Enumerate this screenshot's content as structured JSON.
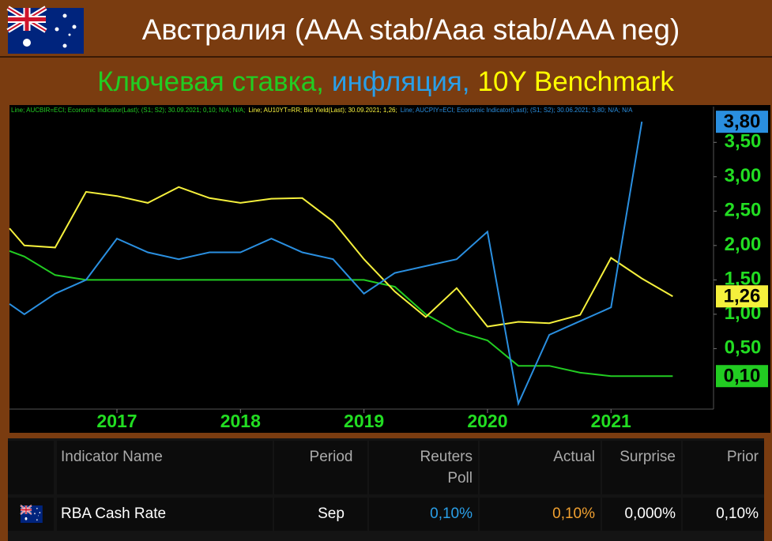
{
  "header": {
    "title": "Австралия (AAA stab/Aaa stab/AAA neg)",
    "subtitle_parts": [
      {
        "text": "Ключевая ставка,",
        "color": "#22cc22"
      },
      {
        "text": "инфляция,",
        "color": "#2a9fe8"
      },
      {
        "text": "10Y Benchmark",
        "color": "#ffff00"
      }
    ]
  },
  "chart_data": {
    "type": "line",
    "x": [
      2016.13,
      2016.25,
      2016.5,
      2016.75,
      2017.0,
      2017.25,
      2017.5,
      2017.75,
      2018.0,
      2018.25,
      2018.5,
      2018.75,
      2019.0,
      2019.25,
      2019.5,
      2019.75,
      2020.0,
      2020.25,
      2020.5,
      2020.75,
      2021.0,
      2021.25,
      2021.5
    ],
    "xlim": [
      2016.13,
      2021.83
    ],
    "xticks": [
      2017,
      2018,
      2019,
      2020,
      2021
    ],
    "ylim": [
      -0.38,
      4.02
    ],
    "yticks": [
      {
        "value": 0.5,
        "label": "0,50"
      },
      {
        "value": 1.0,
        "label": "1,00"
      },
      {
        "value": 1.5,
        "label": "1,50"
      },
      {
        "value": 2.0,
        "label": "2,00"
      },
      {
        "value": 2.5,
        "label": "2,50"
      },
      {
        "value": 3.0,
        "label": "3,00"
      },
      {
        "value": 3.5,
        "label": "3,50"
      }
    ],
    "grid": false,
    "series": [
      {
        "name": "Line; AUCBIR=ECI; Economic Indicator(Last); (S1; S2); 30.09.2021; 0,10; N/A; N/A;",
        "color": "#22cc22",
        "values": [
          1.92,
          1.84,
          1.57,
          1.5,
          1.5,
          1.5,
          1.5,
          1.5,
          1.5,
          1.5,
          1.5,
          1.5,
          1.5,
          1.4,
          1.0,
          0.75,
          0.62,
          0.25,
          0.25,
          0.15,
          0.1,
          0.1,
          0.1
        ],
        "value_labels": [
          null,
          null,
          null,
          null,
          null,
          null,
          null,
          null,
          null,
          null,
          null,
          null,
          null,
          null,
          null,
          null,
          null,
          null,
          null,
          null,
          null,
          null,
          "0,10"
        ]
      },
      {
        "name": "Line; AU10YT=RR; Bid Yield(Last); 30.09.2021; 1,26;",
        "color": "#f5f03c",
        "values": [
          2.25,
          2.0,
          1.97,
          2.78,
          2.72,
          2.62,
          2.85,
          2.69,
          2.62,
          2.68,
          2.69,
          2.35,
          1.8,
          1.33,
          0.96,
          1.38,
          0.82,
          0.89,
          0.87,
          0.99,
          1.82,
          1.52,
          1.26
        ],
        "value_labels": [
          null,
          null,
          null,
          null,
          null,
          null,
          null,
          null,
          null,
          null,
          null,
          null,
          null,
          null,
          null,
          null,
          null,
          null,
          null,
          null,
          null,
          null,
          "1,26"
        ]
      },
      {
        "name": "Line; AUCPIY=ECI; Economic Indicator(Last); (S1; S2); 30.06.2021; 3,80; N/A; N/A",
        "color": "#2a8fe0",
        "values": [
          1.15,
          1.0,
          1.3,
          1.5,
          2.1,
          1.9,
          1.8,
          1.9,
          1.9,
          2.1,
          1.9,
          1.8,
          1.3,
          1.6,
          1.7,
          1.8,
          2.2,
          -0.3,
          0.7,
          0.9,
          1.1,
          3.8,
          null
        ],
        "value_labels": [
          null,
          null,
          null,
          null,
          null,
          null,
          null,
          null,
          null,
          null,
          null,
          null,
          null,
          null,
          null,
          null,
          null,
          null,
          null,
          null,
          null,
          "3,80",
          null
        ]
      }
    ]
  },
  "table": {
    "headers": [
      "Indicator Name",
      "Period",
      "Reuters Poll",
      "Actual",
      "Surprise",
      "Prior"
    ],
    "rows": [
      [
        "RBA Cash Rate",
        "Sep",
        "0,10%",
        "0,10%",
        "0,000%",
        "0,10%"
      ]
    ],
    "colors": [
      "#ffffff",
      "#ffffff",
      "#2a9fe8",
      "#f0a030",
      "#ffffff",
      "#ffffff"
    ]
  }
}
